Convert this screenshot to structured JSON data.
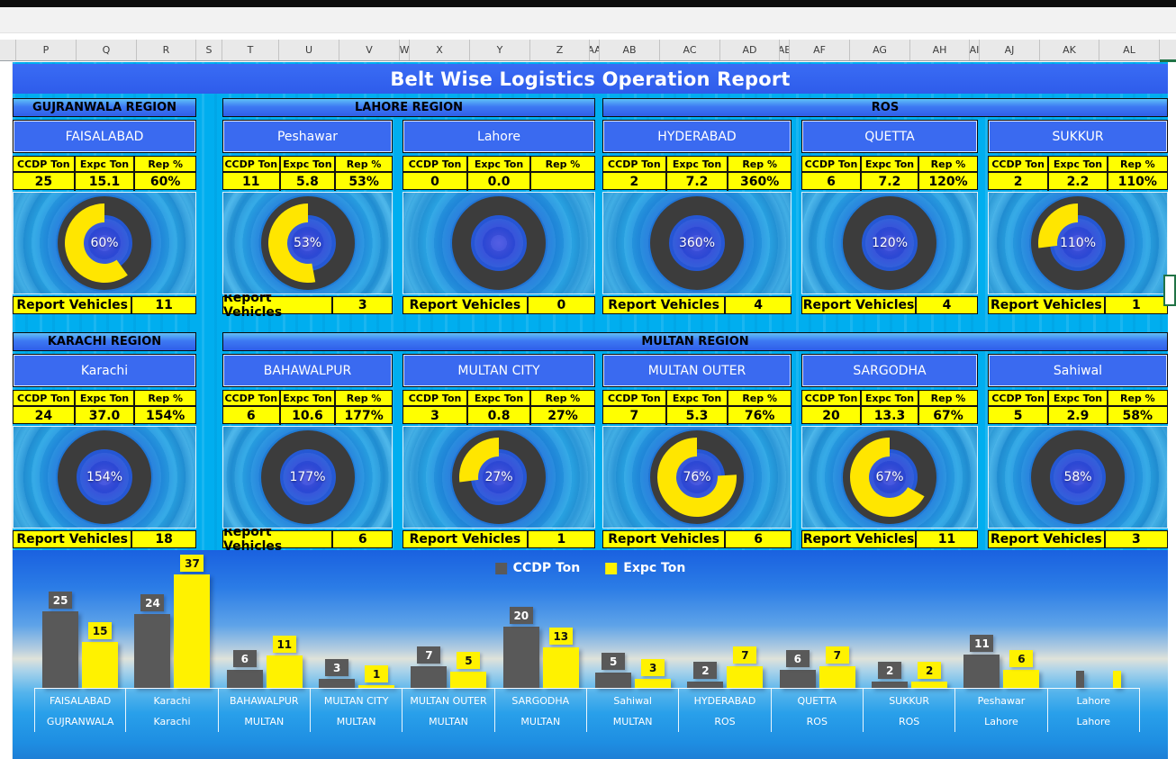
{
  "chrome": {
    "column_headers": [
      "P",
      "Q",
      "R",
      "S",
      "T",
      "U",
      "V",
      "W",
      "X",
      "Y",
      "Z",
      "AA",
      "AB",
      "AC",
      "AD",
      "AE",
      "AF",
      "AG",
      "AH",
      "AI",
      "AJ",
      "AK",
      "AL"
    ]
  },
  "title": "Belt Wise Logistics Operation Report",
  "labels": {
    "ccdp": "CCDP Ton",
    "expc": "Expc Ton",
    "rep": "Rep %",
    "vehicles": "Report Vehicles"
  },
  "rows": [
    {
      "regions": [
        {
          "name": "GUJRANWALA REGION",
          "start": 0,
          "count": 1
        },
        {
          "name": "LAHORE REGION",
          "start": 1,
          "count": 2
        },
        {
          "name": "ROS",
          "start": 3,
          "count": 3
        }
      ],
      "cards": [
        {
          "city": "FAISALABAD",
          "ccdp": "25",
          "expc": "15.1",
          "rep": "60%",
          "vehicles": "11",
          "arc": 0.6
        },
        {
          "city": "Peshawar",
          "ccdp": "11",
          "expc": "5.8",
          "rep": "53%",
          "vehicles": "3",
          "arc": 0.53
        },
        {
          "city": "Lahore",
          "ccdp": "0",
          "expc": "0.0",
          "rep": "",
          "vehicles": "0",
          "arc": 0
        },
        {
          "city": "HYDERABAD",
          "ccdp": "2",
          "expc": "7.2",
          "rep": "360%",
          "vehicles": "4",
          "arc": 0
        },
        {
          "city": "QUETTA",
          "ccdp": "6",
          "expc": "7.2",
          "rep": "120%",
          "vehicles": "4",
          "arc": 0
        },
        {
          "city": "SUKKUR",
          "ccdp": "2",
          "expc": "2.2",
          "rep": "110%",
          "vehicles": "1",
          "arc": 0.27
        }
      ]
    },
    {
      "regions": [
        {
          "name": "KARACHI REGION",
          "start": 0,
          "count": 1
        },
        {
          "name": "MULTAN REGION",
          "start": 1,
          "count": 5
        }
      ],
      "cards": [
        {
          "city": "Karachi",
          "ccdp": "24",
          "expc": "37.0",
          "rep": "154%",
          "vehicles": "18",
          "arc": 0
        },
        {
          "city": "BAHAWALPUR",
          "ccdp": "6",
          "expc": "10.6",
          "rep": "177%",
          "vehicles": "6",
          "arc": 0
        },
        {
          "city": "MULTAN CITY",
          "ccdp": "3",
          "expc": "0.8",
          "rep": "27%",
          "vehicles": "1",
          "arc": 0.27
        },
        {
          "city": "MULTAN OUTER",
          "ccdp": "7",
          "expc": "5.3",
          "rep": "76%",
          "vehicles": "6",
          "arc": 0.76
        },
        {
          "city": "SARGODHA",
          "ccdp": "20",
          "expc": "13.3",
          "rep": "67%",
          "vehicles": "11",
          "arc": 0.67
        },
        {
          "city": "Sahiwal",
          "ccdp": "5",
          "expc": "2.9",
          "rep": "58%",
          "vehicles": "3",
          "arc": 0
        }
      ]
    }
  ],
  "chart_data": {
    "type": "bar",
    "legend_position": "top-center",
    "series": [
      {
        "name": "CCDP Ton",
        "color": "#595959",
        "values": [
          25,
          24,
          6,
          3,
          7,
          20,
          5,
          2,
          6,
          2,
          11,
          0
        ]
      },
      {
        "name": "Expc Ton",
        "color": "#FFFF00",
        "values": [
          15.1,
          37.0,
          10.6,
          0.8,
          5.3,
          13.3,
          2.9,
          7.2,
          7.2,
          2.2,
          5.8,
          0.0
        ]
      }
    ],
    "data_labels": [
      [
        "25",
        "15"
      ],
      [
        "24",
        "37"
      ],
      [
        "6",
        "11"
      ],
      [
        "3",
        "1"
      ],
      [
        "7",
        "5"
      ],
      [
        "20",
        "13"
      ],
      [
        "5",
        "3"
      ],
      [
        "2",
        "7"
      ],
      [
        "6",
        "7"
      ],
      [
        "2",
        "2"
      ],
      [
        "11",
        "6"
      ],
      [
        "",
        ""
      ]
    ],
    "categories": [
      {
        "city": "FAISALABAD",
        "region": "GUJRANWALA"
      },
      {
        "city": "Karachi",
        "region": "Karachi"
      },
      {
        "city": "BAHAWALPUR",
        "region": "MULTAN"
      },
      {
        "city": "MULTAN CITY",
        "region": "MULTAN"
      },
      {
        "city": "MULTAN OUTER",
        "region": "MULTAN"
      },
      {
        "city": "SARGODHA",
        "region": "MULTAN"
      },
      {
        "city": "Sahiwal",
        "region": "MULTAN"
      },
      {
        "city": "HYDERABAD",
        "region": "ROS"
      },
      {
        "city": "QUETTA",
        "region": "ROS"
      },
      {
        "city": "SUKKUR",
        "region": "ROS"
      },
      {
        "city": "Peshawar",
        "region": "Lahore"
      },
      {
        "city": "Lahore",
        "region": "Lahore"
      }
    ],
    "ylim": [
      0,
      40
    ],
    "y_axis_shown": false,
    "grid": false
  },
  "colors": {
    "canvas_cyan": "#00AEEF",
    "header_blue": "#3265F0",
    "cell_yellow": "#FFFF00",
    "arc_yellow": "#FFE600",
    "bar_gray": "#595959",
    "ring_gray": "#3C3C3C",
    "excel_green": "#217346"
  }
}
